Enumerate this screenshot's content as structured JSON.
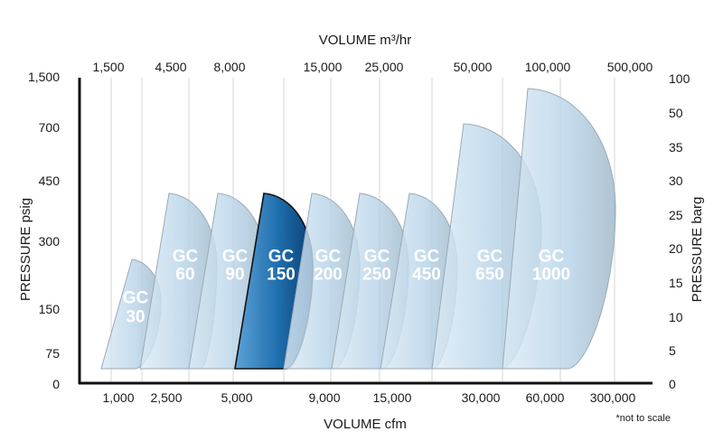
{
  "chart_data": {
    "type": "area",
    "title": "",
    "top_axis": {
      "label": "VOLUME m³/hr",
      "ticks": [
        "1,500",
        "4,500",
        "8,000",
        "15,000",
        "25,000",
        "50,000",
        "100,000",
        "500,000"
      ]
    },
    "bottom_axis": {
      "label": "VOLUME cfm",
      "ticks": [
        "1,000",
        "2,500",
        "5,000",
        "9,000",
        "15,000",
        "30,000",
        "60,000",
        "300,000"
      ]
    },
    "left_axis": {
      "label": "PRESSURE psig",
      "ticks": [
        "0",
        "75",
        "150",
        "300",
        "450",
        "700",
        "1,500"
      ]
    },
    "right_axis": {
      "label": "PRESSURE barg",
      "ticks": [
        "0",
        "5",
        "10",
        "15",
        "20",
        "25",
        "30",
        "35",
        "50",
        "100"
      ]
    },
    "note": "*not to scale",
    "grid": true,
    "colors": {
      "highlight_fill": "#1f6fae",
      "shape_fill": "#bcd6e8",
      "shape_edge": "#9aaab6",
      "label_light": "#ffffff"
    },
    "series": [
      {
        "name": "GC 30",
        "line1": "GC",
        "line2": "30",
        "max_psig": 200,
        "highlight": false
      },
      {
        "name": "GC 60",
        "line1": "GC",
        "line2": "60",
        "max_psig": 450,
        "highlight": false
      },
      {
        "name": "GC 90",
        "line1": "GC",
        "line2": "90",
        "max_psig": 450,
        "highlight": false
      },
      {
        "name": "GC 150",
        "line1": "GC",
        "line2": "150",
        "max_psig": 450,
        "highlight": true
      },
      {
        "name": "GC 200",
        "line1": "GC",
        "line2": "200",
        "max_psig": 450,
        "highlight": false
      },
      {
        "name": "GC 250",
        "line1": "GC",
        "line2": "250",
        "max_psig": 450,
        "highlight": false
      },
      {
        "name": "GC 450",
        "line1": "GC",
        "line2": "450",
        "max_psig": 450,
        "highlight": false
      },
      {
        "name": "GC 650",
        "line1": "GC",
        "line2": "650",
        "max_psig": 700,
        "highlight": false
      },
      {
        "name": "GC 1000",
        "line1": "GC",
        "line2": "1000",
        "max_psig": 1500,
        "highlight": false
      }
    ]
  }
}
